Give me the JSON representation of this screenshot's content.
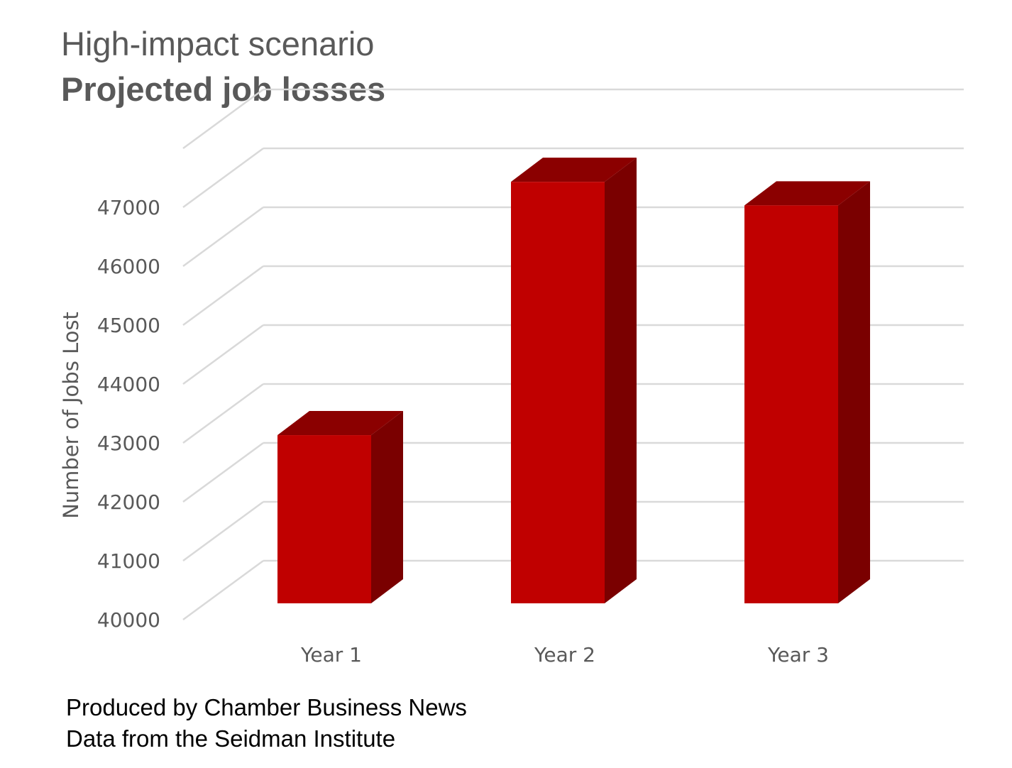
{
  "title": {
    "line1": "High-impact scenario",
    "line2": "Projected job losses"
  },
  "footer": {
    "produced_by": "Produced by Chamber Business News",
    "data_source": "Data from the Seidman Institute"
  },
  "colors": {
    "bar_front": "#c00000",
    "bar_top": "#8b0000",
    "bar_side": "#7a0000",
    "grid": "#d9d9d9",
    "axis_text": "#595959"
  },
  "chart_data": {
    "type": "bar",
    "style": "3d",
    "title": "High-impact scenario / Projected job losses",
    "xlabel": "",
    "ylabel": "Number of Jobs Lost",
    "categories": [
      "Year 1",
      "Year 2",
      "Year 3"
    ],
    "values": [
      42650,
      46950,
      46550
    ],
    "ylim": [
      40000,
      48000
    ],
    "yticks": [
      40000,
      41000,
      42000,
      43000,
      44000,
      45000,
      46000,
      47000
    ],
    "grid": true,
    "legend": "none"
  }
}
